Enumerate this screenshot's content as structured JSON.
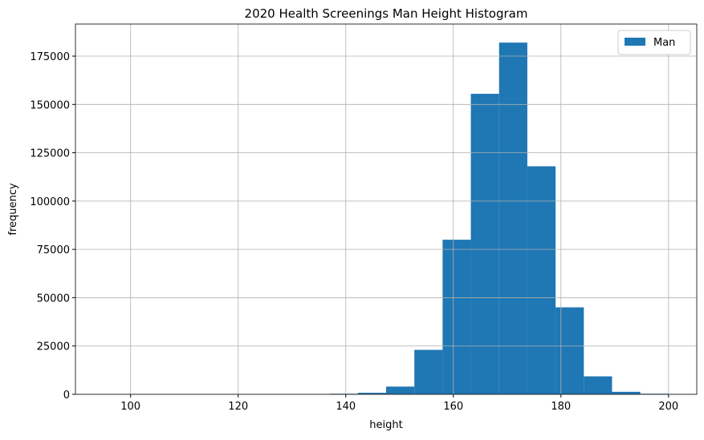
{
  "chart_data": {
    "type": "histogram",
    "title": "2020 Health Screenings Man Height Histogram",
    "x_label": "height",
    "y_label": "frequency",
    "bins": [
      95,
      100.25,
      105.5,
      110.75,
      116,
      121.25,
      126.5,
      131.75,
      137,
      142.25,
      147.5,
      152.75,
      158,
      163.25,
      168.5,
      173.75,
      179,
      184.25,
      189.5,
      194.75,
      200
    ],
    "series": [
      {
        "name": "Man",
        "color": "#1f77b4",
        "values": [
          0,
          0,
          0,
          0,
          0,
          0,
          0,
          0,
          300,
          800,
          4000,
          23000,
          80000,
          155500,
          182000,
          118000,
          45000,
          9300,
          1300,
          300
        ]
      }
    ],
    "xlim": [
      89.75,
      205.25
    ],
    "xticks": [
      100,
      120,
      140,
      160,
      180,
      200
    ],
    "ylim": [
      0,
      191600
    ],
    "yticks": [
      0,
      25000,
      50000,
      75000,
      100000,
      125000,
      150000,
      175000
    ],
    "grid": true,
    "legend": "upper-right"
  }
}
